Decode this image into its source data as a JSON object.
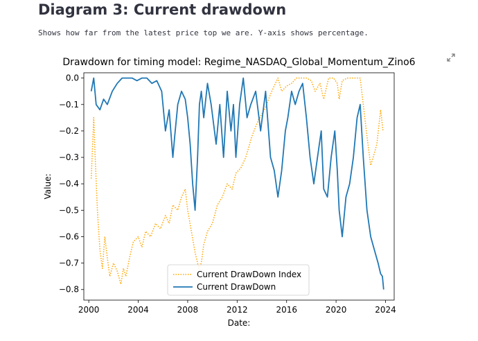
{
  "page": {
    "title": "Diagram 3: Current drawdown",
    "caption": "Shows how far from the latest price top we are. Y-axis shows percentage."
  },
  "colors": {
    "index_series": "#ffa500",
    "drawdown_series": "#1f77b4",
    "text": "#31333f"
  },
  "chart_data": {
    "type": "line",
    "title": "Drawdown for timing model: Regime_NASDAQ_Global_Momentum_Zino6",
    "xlabel": "Date:",
    "ylabel": "Value:",
    "xlim": [
      1999.6,
      2024.7
    ],
    "ylim": [
      -0.84,
      0.02
    ],
    "xticks": [
      2000,
      2004,
      2008,
      2012,
      2016,
      2020,
      2024
    ],
    "yticks": [
      0.0,
      -0.1,
      -0.2,
      -0.3,
      -0.4,
      -0.5,
      -0.6,
      -0.7,
      -0.8
    ],
    "ytick_labels": [
      "0.0",
      "−0.1",
      "−0.2",
      "−0.3",
      "−0.4",
      "−0.5",
      "−0.6",
      "−0.7",
      "−0.8"
    ],
    "legend_position": "lower-center",
    "series": [
      {
        "name": "Current DrawDown Index",
        "style": "dotted",
        "x": [
          2000.2,
          2000.4,
          2000.5,
          2000.7,
          2000.9,
          2001.1,
          2001.3,
          2001.5,
          2001.7,
          2002.0,
          2002.3,
          2002.6,
          2002.8,
          2003.0,
          2003.3,
          2003.6,
          2004.0,
          2004.3,
          2004.6,
          2005.0,
          2005.4,
          2005.8,
          2006.2,
          2006.5,
          2006.8,
          2007.2,
          2007.5,
          2007.8,
          2008.0,
          2008.3,
          2008.6,
          2008.9,
          2009.1,
          2009.3,
          2009.6,
          2010.0,
          2010.4,
          2010.8,
          2011.2,
          2011.6,
          2011.9,
          2012.3,
          2012.7,
          2013.2,
          2013.7,
          2014.2,
          2014.8,
          2015.3,
          2015.6,
          2016.0,
          2016.4,
          2016.8,
          2017.2,
          2017.6,
          2018.0,
          2018.3,
          2018.7,
          2019.0,
          2019.4,
          2019.8,
          2020.1,
          2020.25,
          2020.5,
          2020.9,
          2021.3,
          2021.7,
          2021.95,
          2022.2,
          2022.5,
          2022.8,
          2023.0,
          2023.3,
          2023.6,
          2023.8
        ],
        "y": [
          -0.38,
          -0.15,
          -0.28,
          -0.5,
          -0.65,
          -0.72,
          -0.6,
          -0.68,
          -0.75,
          -0.7,
          -0.73,
          -0.78,
          -0.72,
          -0.75,
          -0.68,
          -0.62,
          -0.6,
          -0.64,
          -0.58,
          -0.6,
          -0.55,
          -0.57,
          -0.52,
          -0.55,
          -0.48,
          -0.5,
          -0.45,
          -0.42,
          -0.5,
          -0.58,
          -0.66,
          -0.72,
          -0.7,
          -0.63,
          -0.58,
          -0.55,
          -0.48,
          -0.45,
          -0.4,
          -0.42,
          -0.36,
          -0.34,
          -0.3,
          -0.22,
          -0.16,
          -0.12,
          -0.05,
          0.0,
          -0.05,
          -0.03,
          -0.02,
          0.0,
          0.0,
          0.0,
          -0.01,
          -0.05,
          -0.02,
          -0.08,
          0.0,
          0.0,
          -0.02,
          -0.08,
          -0.01,
          0.0,
          0.0,
          0.0,
          0.0,
          -0.1,
          -0.22,
          -0.33,
          -0.3,
          -0.25,
          -0.12,
          -0.2
        ]
      },
      {
        "name": "Current DrawDown",
        "style": "solid",
        "x": [
          2000.2,
          2000.4,
          2000.6,
          2000.9,
          2001.2,
          2001.5,
          2001.9,
          2002.3,
          2002.7,
          2003.1,
          2003.5,
          2003.9,
          2004.3,
          2004.7,
          2005.1,
          2005.5,
          2005.9,
          2006.2,
          2006.5,
          2006.8,
          2006.95,
          2007.2,
          2007.5,
          2007.8,
          2008.0,
          2008.2,
          2008.4,
          2008.6,
          2008.8,
          2008.95,
          2009.1,
          2009.3,
          2009.6,
          2009.9,
          2010.3,
          2010.6,
          2010.9,
          2011.2,
          2011.5,
          2011.7,
          2011.9,
          2012.2,
          2012.5,
          2012.8,
          2013.1,
          2013.5,
          2013.9,
          2014.3,
          2014.7,
          2015.0,
          2015.3,
          2015.6,
          2015.9,
          2016.1,
          2016.4,
          2016.7,
          2017.0,
          2017.3,
          2017.6,
          2017.9,
          2018.2,
          2018.5,
          2018.8,
          2019.0,
          2019.3,
          2019.6,
          2019.9,
          2020.1,
          2020.25,
          2020.5,
          2020.8,
          2021.1,
          2021.4,
          2021.7,
          2021.95,
          2022.2,
          2022.5,
          2022.8,
          2023.1,
          2023.4,
          2023.6,
          2023.75,
          2023.85
        ],
        "y": [
          -0.05,
          0.0,
          -0.1,
          -0.12,
          -0.08,
          -0.1,
          -0.05,
          -0.02,
          0.0,
          0.0,
          0.0,
          -0.01,
          0.0,
          0.0,
          -0.02,
          -0.01,
          -0.05,
          -0.2,
          -0.12,
          -0.3,
          -0.22,
          -0.1,
          -0.05,
          -0.08,
          -0.15,
          -0.25,
          -0.4,
          -0.5,
          -0.3,
          -0.1,
          -0.05,
          -0.15,
          -0.02,
          -0.1,
          -0.25,
          -0.1,
          -0.3,
          -0.05,
          -0.2,
          -0.1,
          -0.3,
          -0.1,
          0.0,
          -0.15,
          -0.1,
          -0.05,
          -0.2,
          -0.05,
          -0.3,
          -0.35,
          -0.45,
          -0.35,
          -0.2,
          -0.15,
          -0.05,
          -0.1,
          -0.05,
          -0.02,
          -0.15,
          -0.3,
          -0.4,
          -0.3,
          -0.2,
          -0.42,
          -0.45,
          -0.3,
          -0.2,
          -0.35,
          -0.5,
          -0.6,
          -0.45,
          -0.4,
          -0.3,
          -0.15,
          -0.1,
          -0.3,
          -0.5,
          -0.6,
          -0.65,
          -0.7,
          -0.74,
          -0.75,
          -0.8
        ]
      }
    ]
  }
}
